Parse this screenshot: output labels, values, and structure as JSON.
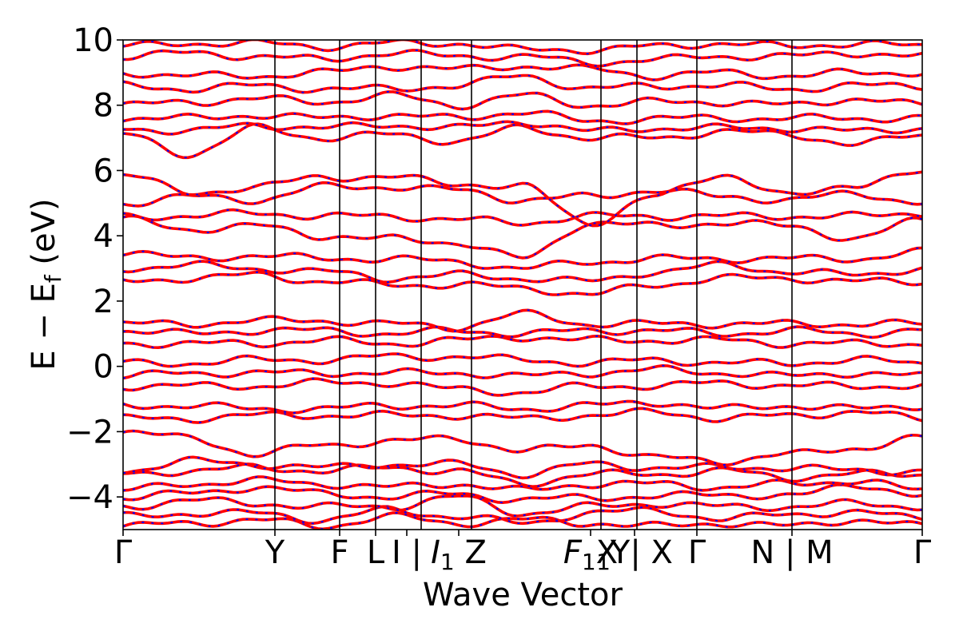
{
  "chart_data": {
    "type": "line",
    "title": "",
    "xlabel": "Wave Vector",
    "ylabel_main": "E − E",
    "ylabel_sub": "f",
    "ylabel_unit": " (eV)",
    "ylim": [
      -5,
      10
    ],
    "yticks": [
      -4,
      -2,
      0,
      2,
      4,
      6,
      8,
      10
    ],
    "ytick_labels": [
      "−4",
      "−2",
      "0",
      "2",
      "4",
      "6",
      "8",
      "10"
    ],
    "grid": false,
    "legend": "none",
    "kpath": [
      {
        "label": "Γ",
        "pos": 0.0
      },
      {
        "label": "Y",
        "pos": 0.19
      },
      {
        "label": "F",
        "pos": 0.271
      },
      {
        "label": "L",
        "pos": 0.316
      },
      {
        "label": "I | ",
        "pos": 0.373,
        "sub": ""
      },
      {
        "label": "I",
        "sub": "1",
        "pos": 0.436,
        "suffix": " Z"
      },
      {
        "label": "F",
        "sub": "1",
        "pos": 0.598,
        "suffix": "X"
      },
      {
        "label": "",
        "pos": 0.643
      },
      {
        "label": "Γ",
        "pos": 0.718
      },
      {
        "label": "N | M",
        "pos": 0.837
      },
      {
        "label": "Γ",
        "pos": 1.0
      }
    ],
    "tick_texts": [
      {
        "text": "Γ",
        "at": 0.0
      },
      {
        "text": "Y",
        "at": 0.19
      },
      {
        "text": "F",
        "at": 0.271
      },
      {
        "text": "L",
        "at": 0.316
      },
      {
        "text": "I | ",
        "at": 0.355
      },
      {
        "text": "I",
        "sub": "1",
        "tail": " Z",
        "at": 0.42
      },
      {
        "text": "F",
        "sub": "1",
        "tail": "X",
        "at": 0.585
      },
      {
        "text": "1",
        "tail": "Y| X",
        "at": 0.64,
        "sub_first": true
      },
      {
        "text": "Γ",
        "at": 0.718
      },
      {
        "text": "N | M",
        "at": 0.837
      },
      {
        "text": "Γ",
        "at": 1.0
      }
    ],
    "series": [
      {
        "color": "#ff0000",
        "style": "solid"
      },
      {
        "color": "#0000ff",
        "style": "dashed"
      }
    ],
    "bands": [
      [
        -4.9,
        -4.8,
        -4.7,
        -4.9,
        -4.6,
        -4.8,
        -4.7,
        -4.8,
        -4.9,
        -4.8,
        -4.9,
        -4.7,
        -4.9
      ],
      [
        -4.6,
        -4.5,
        -4.5,
        -4.7,
        -4.4,
        -4.6,
        -4.8,
        -4.5,
        -4.4,
        -4.7,
        -4.5,
        -4.5,
        -4.6
      ],
      [
        -4.3,
        -4.1,
        -4.2,
        -4.3,
        -4.3,
        -4.0,
        -4.5,
        -4.3,
        -4.2,
        -4.3,
        -4.3,
        -4.2,
        -4.3
      ],
      [
        -4.0,
        -3.9,
        -3.7,
        -3.9,
        -4.0,
        -3.9,
        -4.1,
        -4.0,
        -4.0,
        -3.9,
        -4.0,
        -3.6,
        -4.0
      ],
      [
        -3.8,
        -3.6,
        -3.5,
        -3.6,
        -3.7,
        -3.6,
        -3.8,
        -3.6,
        -3.6,
        -3.7,
        -3.6,
        -3.5,
        -3.8
      ],
      [
        -3.3,
        -3.2,
        -3.1,
        -3.2,
        -3.1,
        -3.2,
        -3.6,
        -3.3,
        -3.3,
        -3.2,
        -3.4,
        -3.3,
        -3.3
      ],
      [
        -3.2,
        -2.9,
        -3.0,
        -3.1,
        -3.0,
        -3.0,
        -3.3,
        -3.0,
        -3.1,
        -3.1,
        -3.1,
        -3.2,
        -3.2
      ],
      [
        -2.0,
        -2.2,
        -2.7,
        -2.4,
        -2.3,
        -2.2,
        -2.6,
        -2.4,
        -2.8,
        -2.9,
        -2.7,
        -2.5,
        -2.2
      ],
      [
        -1.6,
        -1.6,
        -1.5,
        -1.5,
        -1.5,
        -1.5,
        -1.6,
        -1.5,
        -1.4,
        -1.6,
        -1.5,
        -1.4,
        -1.6
      ],
      [
        -1.2,
        -1.2,
        -1.3,
        -1.3,
        -1.2,
        -1.2,
        -1.3,
        -1.2,
        -1.1,
        -1.3,
        -1.2,
        -1.3,
        -1.2
      ],
      [
        -0.6,
        -0.6,
        -0.6,
        -0.5,
        -0.5,
        -0.7,
        -0.8,
        -0.6,
        -0.6,
        -0.5,
        -0.6,
        -0.6,
        -0.6
      ],
      [
        -0.3,
        -0.2,
        -0.2,
        -0.2,
        -0.2,
        -0.2,
        -0.3,
        -0.2,
        -0.1,
        -0.2,
        -0.3,
        -0.2,
        -0.3
      ],
      [
        0.1,
        0.1,
        0.2,
        0.2,
        0.3,
        0.3,
        0.2,
        0.1,
        0.2,
        0.1,
        0.1,
        0.2,
        0.1
      ],
      [
        0.7,
        0.7,
        0.7,
        0.8,
        0.7,
        0.8,
        0.9,
        0.8,
        0.8,
        0.8,
        0.7,
        0.7,
        0.7
      ],
      [
        1.1,
        1.0,
        1.1,
        1.1,
        1.0,
        1.1,
        1.0,
        1.1,
        1.1,
        1.0,
        1.1,
        1.0,
        1.1
      ],
      [
        1.3,
        1.3,
        1.4,
        1.4,
        1.3,
        1.2,
        1.6,
        1.3,
        1.3,
        1.3,
        1.3,
        1.3,
        1.3
      ],
      [
        2.6,
        2.7,
        2.8,
        2.6,
        2.5,
        2.5,
        2.4,
        2.2,
        2.5,
        2.7,
        2.7,
        2.6,
        2.6
      ],
      [
        3.0,
        3.1,
        3.0,
        2.9,
        2.7,
        2.8,
        2.7,
        2.6,
        2.9,
        3.1,
        2.9,
        2.8,
        3.0
      ],
      [
        3.5,
        3.3,
        3.4,
        3.3,
        3.3,
        3.2,
        3.0,
        3.2,
        3.3,
        3.3,
        3.3,
        3.3,
        3.5
      ],
      [
        4.5,
        4.2,
        4.3,
        4.0,
        3.9,
        3.8,
        3.3,
        4.4,
        4.3,
        4.4,
        4.3,
        3.9,
        4.5
      ],
      [
        4.6,
        4.6,
        4.7,
        4.6,
        4.6,
        4.5,
        4.4,
        4.6,
        4.6,
        4.6,
        4.6,
        4.6,
        4.7
      ],
      [
        5.0,
        5.2,
        5.1,
        5.5,
        5.5,
        5.4,
        5.1,
        5.2,
        5.4,
        5.2,
        5.1,
        5.3,
        5.0
      ],
      [
        5.9,
        5.3,
        5.5,
        5.8,
        5.8,
        5.6,
        5.5,
        4.4,
        5.2,
        5.9,
        5.2,
        5.6,
        5.9
      ],
      [
        7.1,
        6.5,
        7.3,
        7.0,
        7.1,
        6.9,
        7.3,
        7.0,
        7.0,
        7.2,
        7.1,
        6.8,
        7.1
      ],
      [
        7.3,
        7.2,
        7.4,
        7.3,
        7.4,
        7.3,
        7.5,
        7.2,
        7.3,
        7.3,
        7.3,
        7.2,
        7.3
      ],
      [
        7.6,
        7.6,
        7.7,
        7.6,
        7.7,
        7.6,
        7.8,
        7.5,
        7.6,
        7.6,
        7.6,
        7.6,
        7.6
      ],
      [
        8.0,
        8.1,
        8.2,
        8.1,
        8.3,
        8.0,
        8.3,
        8.0,
        8.1,
        8.1,
        8.0,
        8.2,
        8.0
      ],
      [
        8.6,
        8.5,
        8.6,
        8.5,
        8.5,
        8.6,
        8.9,
        8.5,
        8.6,
        8.6,
        8.5,
        8.6,
        8.6
      ],
      [
        9.0,
        8.9,
        8.9,
        9.0,
        9.2,
        9.1,
        9.2,
        9.1,
        8.9,
        9.0,
        8.9,
        9.0,
        9.0
      ],
      [
        9.5,
        9.6,
        9.5,
        9.4,
        9.6,
        9.5,
        9.5,
        9.3,
        9.4,
        9.5,
        9.5,
        9.6,
        9.5
      ],
      [
        9.8,
        9.9,
        9.9,
        9.8,
        9.9,
        9.9,
        9.7,
        9.7,
        9.8,
        9.9,
        9.8,
        9.9,
        9.8
      ]
    ]
  }
}
